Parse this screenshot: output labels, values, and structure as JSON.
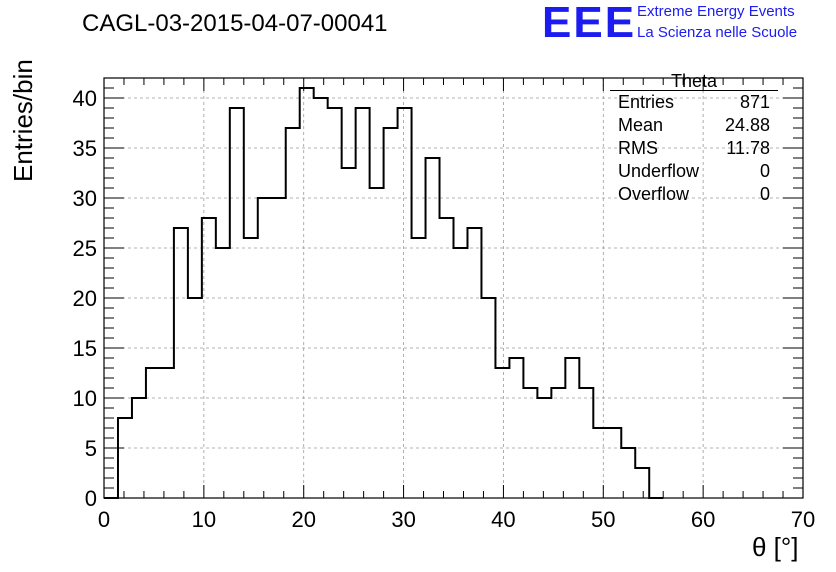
{
  "title": "CAGL-03-2015-04-07-00041",
  "logo": {
    "mark": "EEE",
    "line1": "Extreme Energy Events",
    "line2": "La Scienza nelle Scuole",
    "color": "#1c1cf0"
  },
  "stats": {
    "name": "Theta",
    "rows": [
      {
        "label": "Entries",
        "value": "871"
      },
      {
        "label": "Mean",
        "value": "24.88"
      },
      {
        "label": "RMS",
        "value": "11.78"
      },
      {
        "label": "Underflow",
        "value": "0"
      },
      {
        "label": "Overflow",
        "value": "0"
      }
    ]
  },
  "chart_data": {
    "type": "histogram",
    "title": "CAGL-03-2015-04-07-00041",
    "xlabel": "θ [°]",
    "ylabel": "Entries/bin",
    "xlim": [
      0,
      70
    ],
    "ylim": [
      0,
      42
    ],
    "grid": true,
    "bin_edges": [
      0,
      1.4,
      2.8,
      4.2,
      5.6,
      7.0,
      8.4,
      9.8,
      11.2,
      12.6,
      14.0,
      15.4,
      16.8,
      18.2,
      19.6,
      21.0,
      22.4,
      23.8,
      25.2,
      26.6,
      28.0,
      29.4,
      30.8,
      32.2,
      33.6,
      35.0,
      36.4,
      37.8,
      39.2,
      40.6,
      42.0,
      43.4,
      44.8,
      46.2,
      47.6,
      49.0,
      50.4,
      51.8,
      53.2,
      54.6,
      56.0
    ],
    "counts": [
      0,
      8,
      10,
      13,
      13,
      27,
      20,
      28,
      25,
      39,
      26,
      30,
      30,
      37,
      41,
      40,
      39,
      33,
      39,
      31,
      37,
      39,
      26,
      34,
      28,
      25,
      27,
      20,
      13,
      14,
      11,
      10,
      11,
      14,
      11,
      7,
      7,
      5,
      3,
      0
    ],
    "x_ticks": [
      "0",
      "10",
      "20",
      "30",
      "40",
      "50",
      "60",
      "70"
    ],
    "y_ticks": [
      "0",
      "5",
      "10",
      "15",
      "20",
      "25",
      "30",
      "35",
      "40"
    ]
  }
}
